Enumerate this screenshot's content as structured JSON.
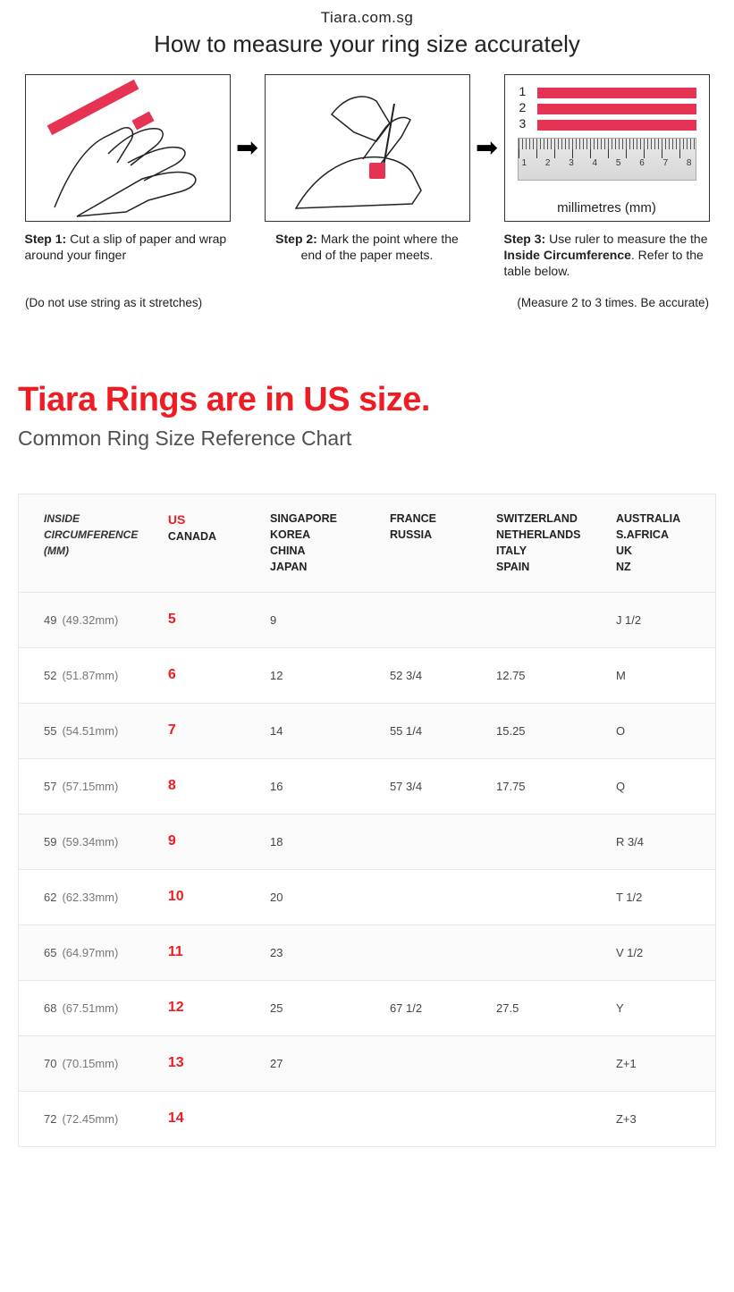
{
  "header": {
    "site": "Tiara.com.sg",
    "title": "How to measure your ring size accurately"
  },
  "steps": [
    {
      "num": "Step 1:",
      "text": "Cut a slip of paper and wrap around your finger"
    },
    {
      "num": "Step 2:",
      "text": "Mark the point where the end of the paper meets."
    },
    {
      "num": "Step 3:",
      "text_prefix": "Use ruler to measure the the ",
      "text_bold": "Inside Circumference",
      "text_suffix": ". Refer to the table below."
    }
  ],
  "step3": {
    "mm_label": "millimetres (mm)",
    "ruler_numbers": [
      "1",
      "2",
      "3",
      "4",
      "5",
      "6",
      "7",
      "8"
    ]
  },
  "notes": {
    "left": "(Do not use string as it stretches)",
    "right": "(Measure 2 to 3 times. Be accurate)"
  },
  "section2": {
    "red_title": "Tiara Rings are in US size.",
    "subtitle": "Common Ring Size Reference Chart"
  },
  "chart": {
    "columns": {
      "c1": "INSIDE\nCIRCUMFERENCE\n(MM)",
      "c2_us": "US",
      "c2_canada": "CANADA",
      "c3": "SINGAPORE\nKOREA\nCHINA\nJAPAN",
      "c4": "FRANCE\nRUSSIA",
      "c5": "SWITZERLAND\nNETHERLANDS\nITALY\nSPAIN",
      "c6": "AUSTRALIA\nS.AFRICA\nUK\nNZ"
    },
    "rows": [
      {
        "n": "49",
        "mm": "(49.32mm)",
        "us": "5",
        "sg": "9",
        "fr": "",
        "ch": "",
        "au": "J 1/2"
      },
      {
        "n": "52",
        "mm": "(51.87mm)",
        "us": "6",
        "sg": "12",
        "fr": "52 3/4",
        "ch": "12.75",
        "au": "M"
      },
      {
        "n": "55",
        "mm": "(54.51mm)",
        "us": "7",
        "sg": "14",
        "fr": "55 1/4",
        "ch": "15.25",
        "au": "O"
      },
      {
        "n": "57",
        "mm": "(57.15mm)",
        "us": "8",
        "sg": "16",
        "fr": "57 3/4",
        "ch": "17.75",
        "au": "Q"
      },
      {
        "n": "59",
        "mm": "(59.34mm)",
        "us": "9",
        "sg": "18",
        "fr": "",
        "ch": "",
        "au": "R 3/4"
      },
      {
        "n": "62",
        "mm": "(62.33mm)",
        "us": "10",
        "sg": "20",
        "fr": "",
        "ch": "",
        "au": "T 1/2"
      },
      {
        "n": "65",
        "mm": "(64.97mm)",
        "us": "11",
        "sg": "23",
        "fr": "",
        "ch": "",
        "au": "V 1/2"
      },
      {
        "n": "68",
        "mm": "(67.51mm)",
        "us": "12",
        "sg": "25",
        "fr": "67 1/2",
        "ch": "27.5",
        "au": "Y"
      },
      {
        "n": "70",
        "mm": "(70.15mm)",
        "us": "13",
        "sg": "27",
        "fr": "",
        "ch": "",
        "au": "Z+1"
      },
      {
        "n": "72",
        "mm": "(72.45mm)",
        "us": "14",
        "sg": "",
        "fr": "",
        "ch": "",
        "au": "Z+3"
      }
    ]
  },
  "colors": {
    "accent_red": "#ef1c24",
    "strip_red": "#e63354",
    "border": "#e8e8e8",
    "row_alt": "#fafafa"
  }
}
